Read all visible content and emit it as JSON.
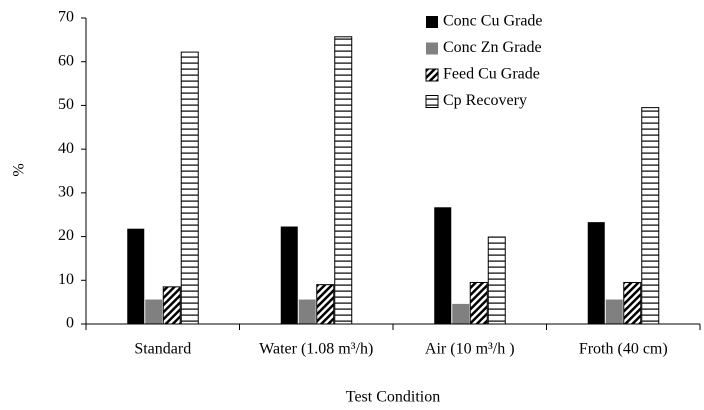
{
  "chart_data": {
    "type": "bar",
    "y_label": "%",
    "x_label": "Test Condition",
    "categories": [
      "Standard",
      "Water (1.08 m³/h)",
      "Air (10 m³/h )",
      "Froth (40 cm)"
    ],
    "series": [
      {
        "name": "Conc Cu Grade",
        "color": "#000000",
        "pattern": "solid",
        "values": [
          21.8,
          22.3,
          26.7,
          23.3
        ]
      },
      {
        "name": "Conc Zn Grade",
        "color": "#808080",
        "pattern": "solid",
        "values": [
          5.6,
          5.6,
          4.6,
          5.6
        ]
      },
      {
        "name": "Feed Cu Grade",
        "color": "#000000",
        "pattern": "diagonal",
        "values": [
          8.5,
          9.0,
          9.5,
          9.5
        ]
      },
      {
        "name": "Cp Recovery",
        "color": "#000000",
        "pattern": "horizontal",
        "values": [
          62.2,
          65.7,
          19.9,
          49.5
        ]
      }
    ],
    "ylim": [
      0,
      70
    ],
    "yticks": [
      0,
      10,
      20,
      30,
      40,
      50,
      60,
      70
    ],
    "grid": false,
    "legend": "top-right"
  }
}
